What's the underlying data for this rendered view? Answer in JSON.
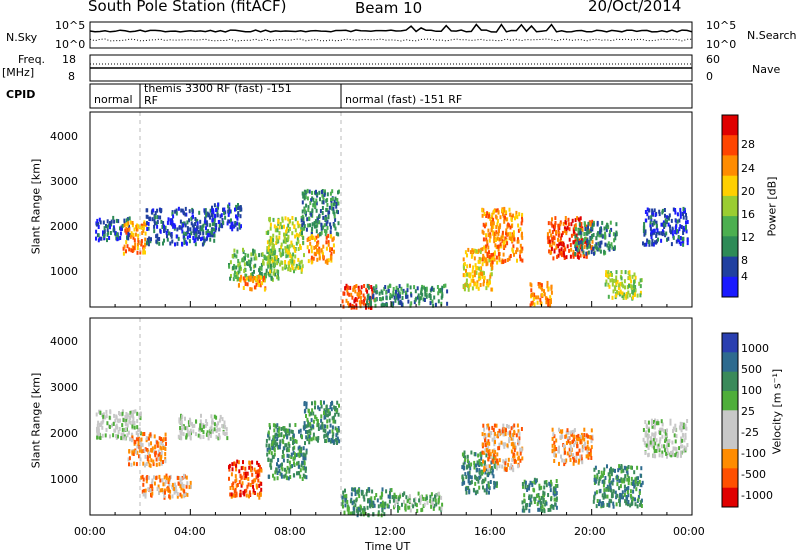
{
  "header": {
    "title": "South Pole Station (fitACF)",
    "beam": "Beam 10",
    "date": "20/Oct/2014"
  },
  "panels": {
    "nsky": {
      "label": "N.Sky",
      "ticks": [
        "10^5",
        "10^0"
      ],
      "right_label": "N.Search",
      "right_ticks": [
        "10^5",
        "10^0"
      ]
    },
    "freq": {
      "label_line1": "Freq.",
      "label_line2": "[MHz]",
      "ticks": [
        "18",
        "8"
      ],
      "right_label": "Nave",
      "right_ticks": [
        "60",
        "0"
      ]
    },
    "cpid": {
      "label": "CPID",
      "segments": [
        {
          "text": "normal"
        },
        {
          "text": "themis 3300 RF (fast) -151 RF"
        },
        {
          "text": "normal (fast) -151 RF"
        }
      ]
    }
  },
  "colors": {
    "power": [
      "#1a1aff",
      "#2040a0",
      "#2e8b57",
      "#4caf50",
      "#9acd32",
      "#ffd000",
      "#ff8c00",
      "#ff4500",
      "#e00000"
    ],
    "velocity": [
      "#2a3fb0",
      "#2e6b8f",
      "#3a8a5a",
      "#4fae3a",
      "#c8c8c8",
      "#c8c8c8",
      "#ff8c00",
      "#ff5000",
      "#e00000"
    ]
  },
  "chart_data": [
    {
      "type": "heatmap",
      "name": "power",
      "xlabel": "",
      "ylabel": "Slant Range [km]",
      "xlim": [
        0,
        24
      ],
      "ylim": [
        180,
        4500
      ],
      "yticks": [
        1000,
        2000,
        3000,
        4000
      ],
      "colorbar": {
        "label": "Power [dB]",
        "ticks": [
          "4",
          "8",
          "12",
          "16",
          "20",
          "24",
          "28"
        ],
        "range": [
          0,
          30
        ]
      },
      "patches": [
        {
          "t0": 0.2,
          "t1": 1.6,
          "r0": 1700,
          "r1": 2200,
          "level": 1
        },
        {
          "t0": 1.3,
          "t1": 2.2,
          "r0": 1400,
          "r1": 2100,
          "level": 6
        },
        {
          "t0": 2.2,
          "t1": 5.0,
          "r0": 1600,
          "r1": 2400,
          "level": 1
        },
        {
          "t0": 4.8,
          "t1": 6.0,
          "r0": 1900,
          "r1": 2500,
          "level": 1
        },
        {
          "t0": 5.5,
          "t1": 7.5,
          "r0": 800,
          "r1": 1500,
          "level": 3
        },
        {
          "t0": 5.8,
          "t1": 7.0,
          "r0": 600,
          "r1": 900,
          "level": 6
        },
        {
          "t0": 7.0,
          "t1": 8.5,
          "r0": 1000,
          "r1": 2200,
          "level": 4
        },
        {
          "t0": 8.4,
          "t1": 9.9,
          "r0": 1800,
          "r1": 2800,
          "level": 2
        },
        {
          "t0": 8.6,
          "t1": 9.7,
          "r0": 1200,
          "r1": 1800,
          "level": 6
        },
        {
          "t0": 10.0,
          "t1": 11.3,
          "r0": 200,
          "r1": 700,
          "level": 7
        },
        {
          "t0": 11.0,
          "t1": 14.2,
          "r0": 250,
          "r1": 700,
          "level": 2
        },
        {
          "t0": 14.8,
          "t1": 16.0,
          "r0": 600,
          "r1": 1500,
          "level": 5
        },
        {
          "t0": 15.6,
          "t1": 17.2,
          "r0": 1200,
          "r1": 2400,
          "level": 6
        },
        {
          "t0": 17.5,
          "t1": 18.4,
          "r0": 250,
          "r1": 800,
          "level": 6
        },
        {
          "t0": 18.2,
          "t1": 20.0,
          "r0": 1300,
          "r1": 2200,
          "level": 7
        },
        {
          "t0": 19.3,
          "t1": 21.0,
          "r0": 1400,
          "r1": 2100,
          "level": 2
        },
        {
          "t0": 20.5,
          "t1": 22.0,
          "r0": 400,
          "r1": 1000,
          "level": 4
        },
        {
          "t0": 22.0,
          "t1": 23.8,
          "r0": 1600,
          "r1": 2400,
          "level": 1
        }
      ]
    },
    {
      "type": "heatmap",
      "name": "velocity",
      "xlabel": "Time UT",
      "ylabel": "Slant Range [km]",
      "xlim": [
        0,
        24
      ],
      "ylim": [
        180,
        4500
      ],
      "yticks": [
        1000,
        2000,
        3000,
        4000
      ],
      "xticks": [
        "00:00",
        "04:00",
        "08:00",
        "12:00",
        "16:00",
        "20:00",
        "00:00"
      ],
      "colorbar": {
        "label": "Velocity [m s⁻¹]",
        "ticks": [
          "1000",
          "500",
          "100",
          "25",
          "-25",
          "-100",
          "-500",
          "-1000"
        ]
      },
      "patches": [
        {
          "t0": 0.2,
          "t1": 2.0,
          "r0": 1900,
          "r1": 2500,
          "level": 4
        },
        {
          "t0": 1.5,
          "t1": 3.0,
          "r0": 1300,
          "r1": 2000,
          "level": 6
        },
        {
          "t0": 2.0,
          "t1": 4.0,
          "r0": 600,
          "r1": 1100,
          "level": 6
        },
        {
          "t0": 3.5,
          "t1": 5.5,
          "r0": 1900,
          "r1": 2400,
          "level": 4
        },
        {
          "t0": 5.5,
          "t1": 6.8,
          "r0": 600,
          "r1": 1400,
          "level": 7
        },
        {
          "t0": 7.0,
          "t1": 8.6,
          "r0": 1000,
          "r1": 2200,
          "level": 2
        },
        {
          "t0": 8.5,
          "t1": 9.9,
          "r0": 1800,
          "r1": 2700,
          "level": 2
        },
        {
          "t0": 10.0,
          "t1": 12.0,
          "r0": 200,
          "r1": 800,
          "level": 2
        },
        {
          "t0": 12.0,
          "t1": 14.0,
          "r0": 300,
          "r1": 700,
          "level": 3
        },
        {
          "t0": 14.8,
          "t1": 16.2,
          "r0": 700,
          "r1": 1600,
          "level": 2
        },
        {
          "t0": 15.6,
          "t1": 17.2,
          "r0": 1200,
          "r1": 2200,
          "level": 6
        },
        {
          "t0": 17.2,
          "t1": 18.6,
          "r0": 300,
          "r1": 1000,
          "level": 2
        },
        {
          "t0": 18.4,
          "t1": 20.0,
          "r0": 1300,
          "r1": 2100,
          "level": 6
        },
        {
          "t0": 20.0,
          "t1": 22.0,
          "r0": 400,
          "r1": 1300,
          "level": 2
        },
        {
          "t0": 22.0,
          "t1": 23.8,
          "r0": 1500,
          "r1": 2300,
          "level": 4
        }
      ]
    }
  ]
}
